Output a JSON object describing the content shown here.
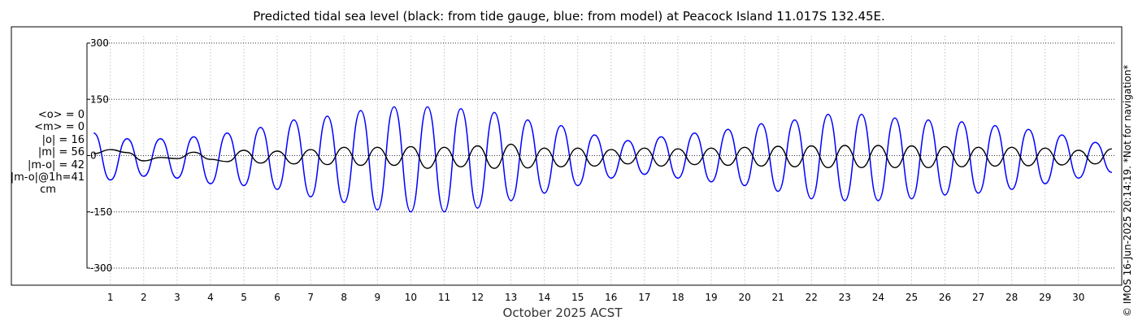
{
  "stats": {
    "mean_obs": "<o> = 0",
    "mean_model": "<m> = 0",
    "abs_obs": "|o| = 16",
    "abs_model": "|m| = 56",
    "abs_diff": "|m-o| = 42",
    "abs_diff_1h": "|m-o|@1h=41",
    "unit": "cm"
  },
  "credit": "© IMOS 16-Jun-2025 20:14:19. *Not for navigation*",
  "chart_data": {
    "type": "line",
    "title": "Predicted tidal sea level (black: from tide gauge, blue: from model) at Peacock Island 11.017S 132.45E.",
    "xlabel": "October 2025 ACST",
    "ylabel": "",
    "x_unit": "day of October 2025",
    "xlim": [
      0.3,
      31.1
    ],
    "ylim": [
      -300,
      300
    ],
    "xticks": [
      1,
      2,
      3,
      4,
      5,
      6,
      7,
      8,
      9,
      10,
      11,
      12,
      13,
      14,
      15,
      16,
      17,
      18,
      19,
      20,
      21,
      22,
      23,
      24,
      25,
      26,
      27,
      28,
      29,
      30
    ],
    "yticks": [
      -300,
      -150,
      0,
      150,
      300
    ],
    "ytick_labels": [
      "-300",
      "-150",
      "0",
      "150",
      "300"
    ],
    "grid": "dotted",
    "colors": {
      "observed": "#000000",
      "model": "#0000ff"
    },
    "series": [
      {
        "color": "#000000",
        "x": [
          0.5,
          1,
          1.5,
          2,
          2.5,
          3,
          3.5,
          4,
          4.5,
          5,
          5.5,
          6,
          6.5,
          7,
          7.5,
          8,
          8.5,
          9,
          9.5,
          10,
          10.5,
          11,
          11.5,
          12,
          12.5,
          13,
          13.5,
          14,
          14.5,
          15,
          15.5,
          16,
          16.5,
          17,
          17.5,
          18,
          18.5,
          19,
          19.5,
          20,
          20.5,
          21,
          21.5,
          22,
          22.5,
          23,
          23.5,
          24,
          24.5,
          25,
          25.5,
          26,
          26.5,
          27,
          27.5,
          28,
          28.5,
          29,
          29.5,
          30,
          30.5,
          31
        ],
        "values": [
          5,
          16,
          8,
          -14,
          -5,
          -8,
          9,
          -10,
          -16,
          14,
          -20,
          12,
          -22,
          16,
          -24,
          22,
          -26,
          22,
          -26,
          24,
          -34,
          22,
          -30,
          26,
          -34,
          30,
          -33,
          20,
          -30,
          20,
          -28,
          16,
          -22,
          20,
          -28,
          18,
          -24,
          20,
          -26,
          22,
          -28,
          25,
          -30,
          26,
          -32,
          27,
          -32,
          27,
          -32,
          26,
          -32,
          24,
          -30,
          22,
          -28,
          22,
          -27,
          20,
          -25,
          14,
          -22,
          18
        ]
      },
      {
        "color": "#0000ff",
        "x": [
          0.5,
          1,
          1.5,
          2,
          2.5,
          3,
          3.5,
          4,
          4.5,
          5,
          5.5,
          6,
          6.5,
          7,
          7.5,
          8,
          8.5,
          9,
          9.5,
          10,
          10.5,
          11,
          11.5,
          12,
          12.5,
          13,
          13.5,
          14,
          14.5,
          15,
          15.5,
          16,
          16.5,
          17,
          17.5,
          18,
          18.5,
          19,
          19.5,
          20,
          20.5,
          21,
          21.5,
          22,
          22.5,
          23,
          23.5,
          24,
          24.5,
          25,
          25.5,
          26,
          26.5,
          27,
          27.5,
          28,
          28.5,
          29,
          29.5,
          30,
          30.5,
          31
        ],
        "values": [
          60,
          -65,
          45,
          -55,
          45,
          -60,
          50,
          -75,
          60,
          -80,
          75,
          -90,
          95,
          -110,
          105,
          -125,
          120,
          -145,
          130,
          -150,
          130,
          -150,
          125,
          -140,
          115,
          -120,
          95,
          -100,
          80,
          -80,
          55,
          -60,
          40,
          -50,
          50,
          -60,
          60,
          -70,
          70,
          -80,
          85,
          -95,
          95,
          -115,
          110,
          -120,
          110,
          -120,
          100,
          -115,
          95,
          -105,
          90,
          -100,
          80,
          -90,
          70,
          -75,
          55,
          -60,
          35,
          -45
        ]
      }
    ]
  }
}
